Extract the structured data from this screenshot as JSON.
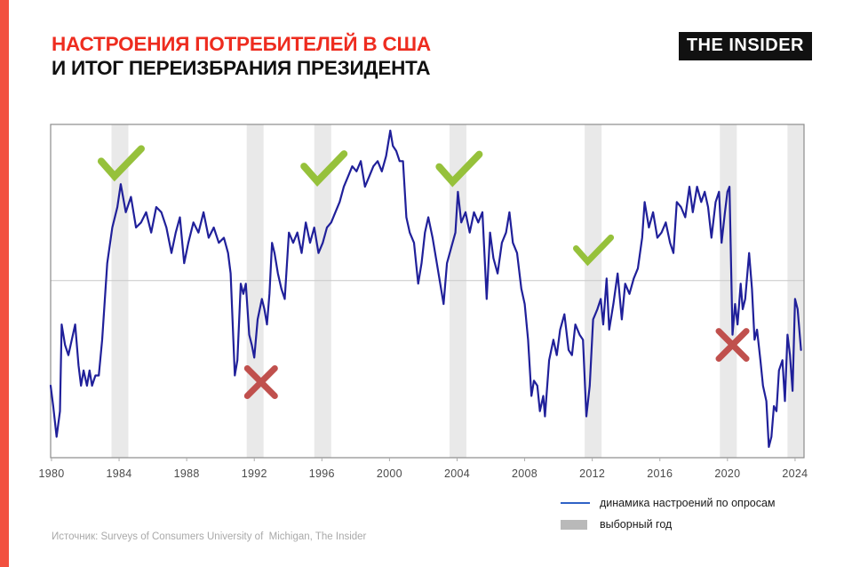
{
  "header": {
    "title_line1": "НАСТРОЕНИЯ ПОТРЕБИТЕЛЕЙ В США",
    "title_line2": "И ИТОГ ПЕРЕИЗБРАНИЯ ПРЕЗИДЕНТА",
    "title_accent_color": "#ee2c1f",
    "logo_text": "THE INSIDER"
  },
  "legend": {
    "line_label": "динамика настроений по опросам",
    "band_label": "выборный год",
    "line_swatch_color": "#2f62c6",
    "band_swatch_color": "#b9b9b9"
  },
  "source": {
    "text": "Источник: Surveys of Consumers University of  Michigan, The Insider"
  },
  "chart_data": {
    "type": "line",
    "title": "Настроения потребителей в США и итог переизбрания президента",
    "xlabel": "",
    "ylabel": "",
    "grid": "single horizontal gridline",
    "legend_position": "below-right",
    "axis": {
      "year_min": 1979.95,
      "year_max": 2024.53,
      "v_min": 47.9,
      "v_max": 113.2,
      "gridline_value": 82.6
    },
    "x_ticks": [
      1980,
      1984,
      1988,
      1992,
      1996,
      2000,
      2004,
      2008,
      2012,
      2016,
      2020,
      2024
    ],
    "election_year_bands": [
      1984,
      1992,
      1996,
      2004,
      2012,
      2020,
      2024
    ],
    "outcome_marks": [
      {
        "year": 1984.1,
        "value": 105.3,
        "result": "win",
        "size": 46
      },
      {
        "year": 1992.4,
        "value": 62.7,
        "result": "loss",
        "size": 31
      },
      {
        "year": 1996.1,
        "value": 104.3,
        "result": "win",
        "size": 46
      },
      {
        "year": 2004.1,
        "value": 104.2,
        "result": "win",
        "size": 46
      },
      {
        "year": 2012.05,
        "value": 88.3,
        "result": "win",
        "size": 40
      },
      {
        "year": 2020.3,
        "value": 70.0,
        "result": "loss",
        "size": 31
      }
    ],
    "colors": {
      "line": "#20209a",
      "band": "#e9e9e9",
      "border": "#8c8c8c",
      "gridline": "#c9c9c9",
      "tick": "#adadad",
      "tick_label": "#4a4a4a",
      "win_mark": "#96c13b",
      "loss_mark": "#c0504d"
    },
    "series": [
      {
        "name": "динамика настроений по опросам",
        "points": [
          [
            1979.95,
            62
          ],
          [
            1980.1,
            58
          ],
          [
            1980.3,
            52
          ],
          [
            1980.5,
            57
          ],
          [
            1980.6,
            74
          ],
          [
            1980.8,
            70
          ],
          [
            1981.0,
            68
          ],
          [
            1981.2,
            71
          ],
          [
            1981.4,
            74
          ],
          [
            1981.6,
            66
          ],
          [
            1981.75,
            62
          ],
          [
            1981.9,
            65
          ],
          [
            1982.1,
            62
          ],
          [
            1982.25,
            65
          ],
          [
            1982.4,
            62
          ],
          [
            1982.6,
            64
          ],
          [
            1982.8,
            64
          ],
          [
            1983.0,
            71
          ],
          [
            1983.3,
            86
          ],
          [
            1983.6,
            93
          ],
          [
            1983.9,
            97
          ],
          [
            1984.1,
            101.5
          ],
          [
            1984.4,
            96
          ],
          [
            1984.7,
            99
          ],
          [
            1985.0,
            93
          ],
          [
            1985.3,
            94
          ],
          [
            1985.6,
            96
          ],
          [
            1985.9,
            92
          ],
          [
            1986.2,
            97
          ],
          [
            1986.5,
            96
          ],
          [
            1986.8,
            93
          ],
          [
            1987.1,
            88
          ],
          [
            1987.35,
            92
          ],
          [
            1987.6,
            95
          ],
          [
            1987.85,
            86
          ],
          [
            1988.1,
            90
          ],
          [
            1988.4,
            94
          ],
          [
            1988.7,
            92
          ],
          [
            1989.0,
            96
          ],
          [
            1989.3,
            91
          ],
          [
            1989.6,
            93
          ],
          [
            1989.9,
            90
          ],
          [
            1990.2,
            91
          ],
          [
            1990.45,
            88
          ],
          [
            1990.6,
            84
          ],
          [
            1990.85,
            64
          ],
          [
            1991.0,
            67
          ],
          [
            1991.2,
            82
          ],
          [
            1991.35,
            80
          ],
          [
            1991.5,
            82
          ],
          [
            1991.7,
            72
          ],
          [
            1991.85,
            70
          ],
          [
            1992.0,
            67.5
          ],
          [
            1992.2,
            75
          ],
          [
            1992.45,
            79
          ],
          [
            1992.6,
            77
          ],
          [
            1992.75,
            74
          ],
          [
            1992.9,
            80
          ],
          [
            1993.05,
            90
          ],
          [
            1993.2,
            88
          ],
          [
            1993.4,
            84
          ],
          [
            1993.6,
            81
          ],
          [
            1993.8,
            79
          ],
          [
            1994.05,
            92
          ],
          [
            1994.3,
            90
          ],
          [
            1994.55,
            92
          ],
          [
            1994.8,
            88
          ],
          [
            1995.05,
            94
          ],
          [
            1995.3,
            90
          ],
          [
            1995.55,
            93
          ],
          [
            1995.8,
            88
          ],
          [
            1996.05,
            90
          ],
          [
            1996.3,
            93
          ],
          [
            1996.55,
            94
          ],
          [
            1996.8,
            96
          ],
          [
            1997.05,
            98
          ],
          [
            1997.3,
            101
          ],
          [
            1997.55,
            103
          ],
          [
            1997.8,
            105
          ],
          [
            1998.05,
            104
          ],
          [
            1998.3,
            106
          ],
          [
            1998.55,
            101
          ],
          [
            1998.8,
            103
          ],
          [
            1999.05,
            105
          ],
          [
            1999.3,
            106
          ],
          [
            1999.55,
            104
          ],
          [
            1999.8,
            107
          ],
          [
            2000.05,
            112
          ],
          [
            2000.2,
            109
          ],
          [
            2000.4,
            108
          ],
          [
            2000.6,
            106
          ],
          [
            2000.8,
            106
          ],
          [
            2001.0,
            95
          ],
          [
            2001.2,
            92
          ],
          [
            2001.45,
            90
          ],
          [
            2001.7,
            82
          ],
          [
            2001.9,
            86
          ],
          [
            2002.1,
            92
          ],
          [
            2002.3,
            95
          ],
          [
            2002.55,
            91
          ],
          [
            2002.8,
            86
          ],
          [
            2003.0,
            82
          ],
          [
            2003.2,
            78
          ],
          [
            2003.4,
            86
          ],
          [
            2003.65,
            89
          ],
          [
            2003.9,
            92
          ],
          [
            2004.05,
            100
          ],
          [
            2004.25,
            94
          ],
          [
            2004.5,
            96
          ],
          [
            2004.75,
            92
          ],
          [
            2005.0,
            96
          ],
          [
            2005.25,
            94
          ],
          [
            2005.5,
            96
          ],
          [
            2005.75,
            79
          ],
          [
            2005.95,
            92
          ],
          [
            2006.15,
            87
          ],
          [
            2006.4,
            84
          ],
          [
            2006.65,
            90
          ],
          [
            2006.9,
            92
          ],
          [
            2007.1,
            96
          ],
          [
            2007.3,
            90
          ],
          [
            2007.55,
            88
          ],
          [
            2007.8,
            81
          ],
          [
            2008.0,
            78
          ],
          [
            2008.2,
            71
          ],
          [
            2008.4,
            60
          ],
          [
            2008.55,
            63
          ],
          [
            2008.75,
            62
          ],
          [
            2008.9,
            57
          ],
          [
            2009.1,
            60
          ],
          [
            2009.2,
            56
          ],
          [
            2009.45,
            67
          ],
          [
            2009.7,
            71
          ],
          [
            2009.9,
            68
          ],
          [
            2010.1,
            73
          ],
          [
            2010.35,
            76
          ],
          [
            2010.6,
            69
          ],
          [
            2010.8,
            68
          ],
          [
            2011.0,
            74
          ],
          [
            2011.25,
            72
          ],
          [
            2011.45,
            71
          ],
          [
            2011.65,
            56
          ],
          [
            2011.85,
            62
          ],
          [
            2012.05,
            75
          ],
          [
            2012.3,
            77
          ],
          [
            2012.5,
            79
          ],
          [
            2012.65,
            74
          ],
          [
            2012.85,
            83
          ],
          [
            2013.0,
            73
          ],
          [
            2013.25,
            78
          ],
          [
            2013.5,
            84
          ],
          [
            2013.75,
            75
          ],
          [
            2013.95,
            82
          ],
          [
            2014.2,
            80
          ],
          [
            2014.45,
            83
          ],
          [
            2014.7,
            85
          ],
          [
            2014.95,
            91
          ],
          [
            2015.1,
            98
          ],
          [
            2015.35,
            93
          ],
          [
            2015.6,
            96
          ],
          [
            2015.85,
            91
          ],
          [
            2016.1,
            92
          ],
          [
            2016.35,
            94
          ],
          [
            2016.6,
            90
          ],
          [
            2016.8,
            88
          ],
          [
            2017.0,
            98
          ],
          [
            2017.25,
            97
          ],
          [
            2017.5,
            95
          ],
          [
            2017.75,
            101
          ],
          [
            2017.95,
            96
          ],
          [
            2018.2,
            101
          ],
          [
            2018.45,
            98
          ],
          [
            2018.65,
            100
          ],
          [
            2018.85,
            97
          ],
          [
            2019.05,
            91
          ],
          [
            2019.3,
            98
          ],
          [
            2019.5,
            100
          ],
          [
            2019.65,
            90
          ],
          [
            2019.85,
            96
          ],
          [
            2020.0,
            100
          ],
          [
            2020.12,
            101
          ],
          [
            2020.3,
            72
          ],
          [
            2020.45,
            78
          ],
          [
            2020.6,
            74
          ],
          [
            2020.78,
            82
          ],
          [
            2020.9,
            77
          ],
          [
            2021.05,
            79
          ],
          [
            2021.28,
            88
          ],
          [
            2021.45,
            81
          ],
          [
            2021.6,
            71
          ],
          [
            2021.75,
            73
          ],
          [
            2021.95,
            67
          ],
          [
            2022.1,
            62
          ],
          [
            2022.3,
            59
          ],
          [
            2022.45,
            50
          ],
          [
            2022.6,
            52
          ],
          [
            2022.75,
            58
          ],
          [
            2022.9,
            57
          ],
          [
            2023.05,
            65
          ],
          [
            2023.25,
            67
          ],
          [
            2023.4,
            59
          ],
          [
            2023.55,
            72
          ],
          [
            2023.7,
            68
          ],
          [
            2023.85,
            61
          ],
          [
            2024.0,
            79
          ],
          [
            2024.15,
            77
          ],
          [
            2024.35,
            69
          ]
        ]
      }
    ]
  }
}
